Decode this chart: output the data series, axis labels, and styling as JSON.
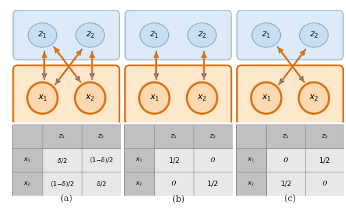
{
  "bg_color": "#ffffff",
  "node_z_fill": "#c8ddf0",
  "node_z_edge": "#8ab0cc",
  "node_x_fill": "#fcd9b0",
  "node_x_edge": "#e07010",
  "box_z_fill": "#ddeaf8",
  "box_z_edge": "#a0bcd5",
  "box_x_fill": "#fde8cc",
  "box_x_edge": "#e07010",
  "arrow_blue": "#3a6fc4",
  "arrow_orange": "#e07010",
  "table_header": "#c0c0c0",
  "table_body": "#e8e8e8",
  "table_border": "#888888",
  "panels": [
    {
      "label": "(a)",
      "connections": [
        [
          "z1",
          "x1",
          "blue"
        ],
        [
          "z1",
          "x2",
          "blue"
        ],
        [
          "z2",
          "x1",
          "blue"
        ],
        [
          "z2",
          "x2",
          "blue"
        ],
        [
          "x1",
          "z1",
          "orange"
        ],
        [
          "x1",
          "z2",
          "orange"
        ],
        [
          "x2",
          "z1",
          "orange"
        ],
        [
          "x2",
          "z2",
          "orange"
        ]
      ],
      "table": [
        [
          "",
          "z_1",
          "z_2"
        ],
        [
          "x_1",
          "\\delta/2",
          "(1{-}\\delta)/2"
        ],
        [
          "x_2",
          "(1{-}\\delta)/2",
          "\\delta/2"
        ]
      ]
    },
    {
      "label": "(b)",
      "connections": [
        [
          "z1",
          "x1",
          "blue"
        ],
        [
          "z2",
          "x2",
          "blue"
        ],
        [
          "x1",
          "z1",
          "orange"
        ],
        [
          "x2",
          "z2",
          "orange"
        ]
      ],
      "table": [
        [
          "",
          "z_1",
          "z_2"
        ],
        [
          "x_1",
          "1/2",
          "0"
        ],
        [
          "x_2",
          "0",
          "1/2"
        ]
      ]
    },
    {
      "label": "(c)",
      "connections": [
        [
          "z1",
          "x2",
          "blue"
        ],
        [
          "z2",
          "x1",
          "blue"
        ],
        [
          "x1",
          "z2",
          "orange"
        ],
        [
          "x2",
          "z1",
          "orange"
        ]
      ],
      "table": [
        [
          "",
          "z_1",
          "z_2"
        ],
        [
          "x_1",
          "0",
          "1/2"
        ],
        [
          "x_2",
          "1/2",
          "0"
        ]
      ]
    }
  ]
}
